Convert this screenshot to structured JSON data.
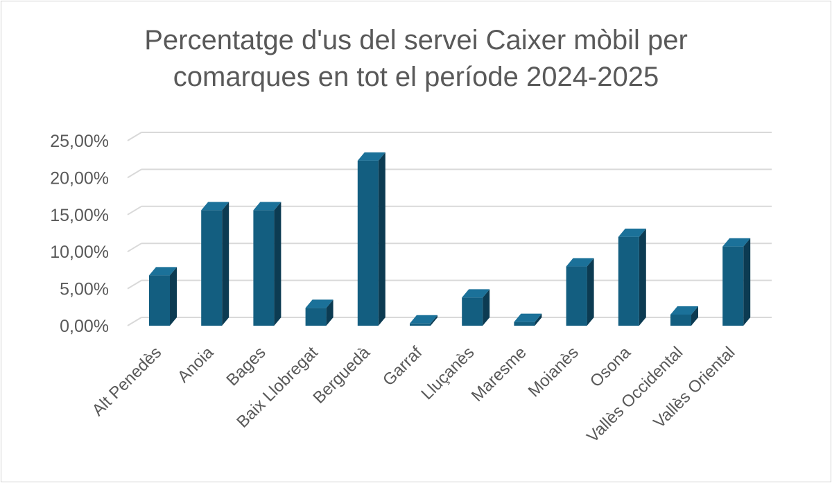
{
  "chart_data": {
    "type": "bar",
    "title_lines": [
      "Percentatge d'us del servei Caixer mòbil per",
      "comarques en tot el període 2024-2025"
    ],
    "categories": [
      "Alt Penedès",
      "Anoia",
      "Bages",
      "Baix Llobregat",
      "Berguedà",
      "Garraf",
      "Lluçanès",
      "Maresme",
      "Moianès",
      "Osona",
      "Vallès Occidental",
      "Vallès Oriental"
    ],
    "values": [
      6.8,
      15.6,
      15.6,
      2.4,
      22.3,
      0.3,
      3.8,
      0.5,
      8.0,
      12.0,
      1.5,
      10.7
    ],
    "ylim": [
      0,
      25
    ],
    "yticks": [
      0,
      5,
      10,
      15,
      20,
      25
    ],
    "ytick_labels": [
      "0,00%",
      "5,00%",
      "10,00%",
      "15,00%",
      "20,00%",
      "25,00%"
    ],
    "xlabel": "",
    "ylabel": "",
    "grid": true,
    "colors": {
      "bar_front": "#135e80",
      "bar_side": "#0c3b52",
      "bar_top": "#1b7199",
      "grid": "#d9d9d9"
    }
  }
}
